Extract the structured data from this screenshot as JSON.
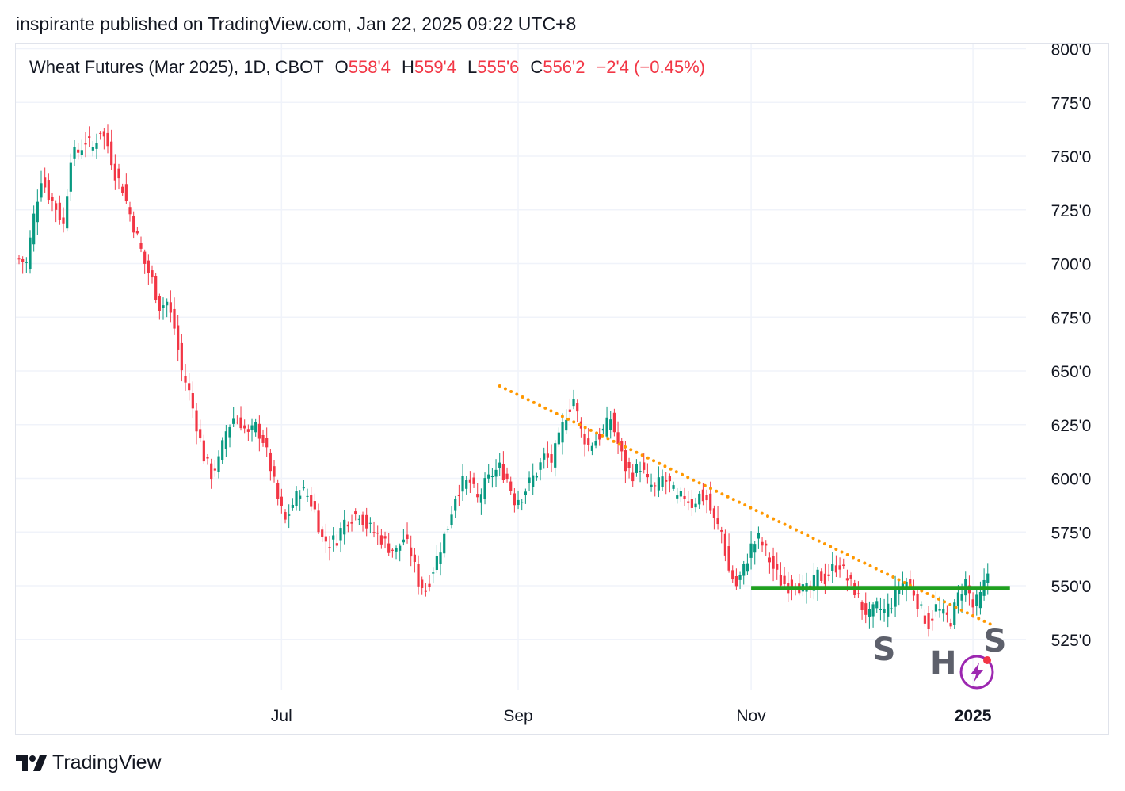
{
  "header": {
    "published": "inspirante published on TradingView.com, Jan 22, 2025 09:22 UTC+8"
  },
  "legend": {
    "symbol": "Wheat Futures (Mar 2025), 1D, CBOT",
    "open_label": "O",
    "open": "558'4",
    "high_label": "H",
    "high": "559'4",
    "low_label": "L",
    "low": "555'6",
    "close_label": "C",
    "close": "556'2",
    "change": "−2'4 (−0.45%)"
  },
  "brand": {
    "name": "TradingView"
  },
  "colors": {
    "up": "#089981",
    "down": "#f23645",
    "support": "#1fa01f",
    "trendline": "#ff9800",
    "grid": "#f0f3fa",
    "pattern_label": "#5d606b",
    "alert_icon": "#9c27b0"
  },
  "icons": [
    "tradingview-logo-icon",
    "alert-icon"
  ],
  "chart_data": {
    "type": "candlestick",
    "y_ticks": [
      "800'0",
      "775'0",
      "750'0",
      "725'0",
      "700'0",
      "675'0",
      "650'0",
      "625'0",
      "600'0",
      "575'0",
      "550'0",
      "525'0"
    ],
    "y_tick_values": [
      800,
      775,
      750,
      725,
      700,
      675,
      650,
      625,
      600,
      575,
      550,
      525
    ],
    "ylim": [
      510,
      802
    ],
    "x_ticks": [
      {
        "label": "Jul",
        "index": 71,
        "bold": false
      },
      {
        "label": "Sep",
        "index": 135,
        "bold": false
      },
      {
        "label": "Nov",
        "index": 198,
        "bold": false
      },
      {
        "label": "2025",
        "index": 258,
        "bold": true
      }
    ],
    "grid": true,
    "close_path": [
      [
        0,
        702
      ],
      [
        2,
        700
      ],
      [
        4,
        722
      ],
      [
        6,
        740
      ],
      [
        8,
        732
      ],
      [
        10,
        726
      ],
      [
        12,
        718
      ],
      [
        14,
        750
      ],
      [
        16,
        752
      ],
      [
        18,
        757
      ],
      [
        20,
        754
      ],
      [
        22,
        762
      ],
      [
        24,
        755
      ],
      [
        26,
        742
      ],
      [
        28,
        735
      ],
      [
        30,
        723
      ],
      [
        32,
        712
      ],
      [
        34,
        700
      ],
      [
        36,
        692
      ],
      [
        38,
        680
      ],
      [
        40,
        682
      ],
      [
        42,
        670
      ],
      [
        44,
        650
      ],
      [
        46,
        640
      ],
      [
        48,
        625
      ],
      [
        50,
        610
      ],
      [
        52,
        602
      ],
      [
        54,
        608
      ],
      [
        56,
        622
      ],
      [
        58,
        628
      ],
      [
        60,
        626
      ],
      [
        62,
        620
      ],
      [
        64,
        624
      ],
      [
        66,
        618
      ],
      [
        68,
        605
      ],
      [
        70,
        590
      ],
      [
        72,
        580
      ],
      [
        74,
        588
      ],
      [
        76,
        595
      ],
      [
        78,
        592
      ],
      [
        80,
        585
      ],
      [
        82,
        572
      ],
      [
        84,
        570
      ],
      [
        86,
        572
      ],
      [
        88,
        580
      ],
      [
        90,
        582
      ],
      [
        92,
        584
      ],
      [
        94,
        578
      ],
      [
        96,
        575
      ],
      [
        98,
        572
      ],
      [
        100,
        568
      ],
      [
        102,
        566
      ],
      [
        104,
        572
      ],
      [
        106,
        565
      ],
      [
        108,
        552
      ],
      [
        110,
        548
      ],
      [
        112,
        558
      ],
      [
        114,
        568
      ],
      [
        116,
        578
      ],
      [
        118,
        592
      ],
      [
        120,
        598
      ],
      [
        122,
        598
      ],
      [
        124,
        590
      ],
      [
        126,
        597
      ],
      [
        128,
        602
      ],
      [
        130,
        605
      ],
      [
        132,
        600
      ],
      [
        134,
        590
      ],
      [
        136,
        592
      ],
      [
        138,
        598
      ],
      [
        140,
        603
      ],
      [
        142,
        610
      ],
      [
        144,
        608
      ],
      [
        146,
        618
      ],
      [
        148,
        630
      ],
      [
        150,
        637
      ],
      [
        152,
        622
      ],
      [
        154,
        615
      ],
      [
        156,
        618
      ],
      [
        158,
        622
      ],
      [
        160,
        628
      ],
      [
        162,
        616
      ],
      [
        164,
        605
      ],
      [
        166,
        602
      ],
      [
        168,
        606
      ],
      [
        170,
        598
      ],
      [
        172,
        595
      ],
      [
        174,
        600
      ],
      [
        176,
        597
      ],
      [
        178,
        590
      ],
      [
        180,
        592
      ],
      [
        182,
        588
      ],
      [
        184,
        592
      ],
      [
        186,
        590
      ],
      [
        188,
        580
      ],
      [
        190,
        575
      ],
      [
        192,
        557
      ],
      [
        194,
        550
      ],
      [
        196,
        558
      ],
      [
        198,
        568
      ],
      [
        200,
        572
      ],
      [
        202,
        566
      ],
      [
        204,
        558
      ],
      [
        206,
        552
      ],
      [
        208,
        550
      ],
      [
        210,
        552
      ],
      [
        212,
        548
      ],
      [
        214,
        548
      ],
      [
        216,
        555
      ],
      [
        218,
        553
      ],
      [
        220,
        558
      ],
      [
        222,
        560
      ],
      [
        224,
        553
      ],
      [
        226,
        548
      ],
      [
        228,
        540
      ],
      [
        230,
        536
      ],
      [
        232,
        540
      ],
      [
        234,
        538
      ],
      [
        236,
        542
      ],
      [
        238,
        550
      ],
      [
        240,
        552
      ],
      [
        242,
        547
      ],
      [
        244,
        538
      ],
      [
        246,
        532
      ],
      [
        248,
        540
      ],
      [
        250,
        536
      ],
      [
        252,
        534
      ],
      [
        254,
        545
      ],
      [
        256,
        552
      ],
      [
        258,
        540
      ],
      [
        260,
        545
      ],
      [
        262,
        556
      ]
    ],
    "patterns": [
      {
        "label": "S",
        "index": 234
      },
      {
        "label": "H",
        "index": 250
      },
      {
        "label": "S",
        "index": 264
      }
    ],
    "trendline": {
      "start": [
        130,
        643
      ],
      "end": [
        264,
        531
      ]
    },
    "support_line": {
      "start": [
        198,
        549
      ],
      "end": [
        268,
        549
      ]
    }
  }
}
